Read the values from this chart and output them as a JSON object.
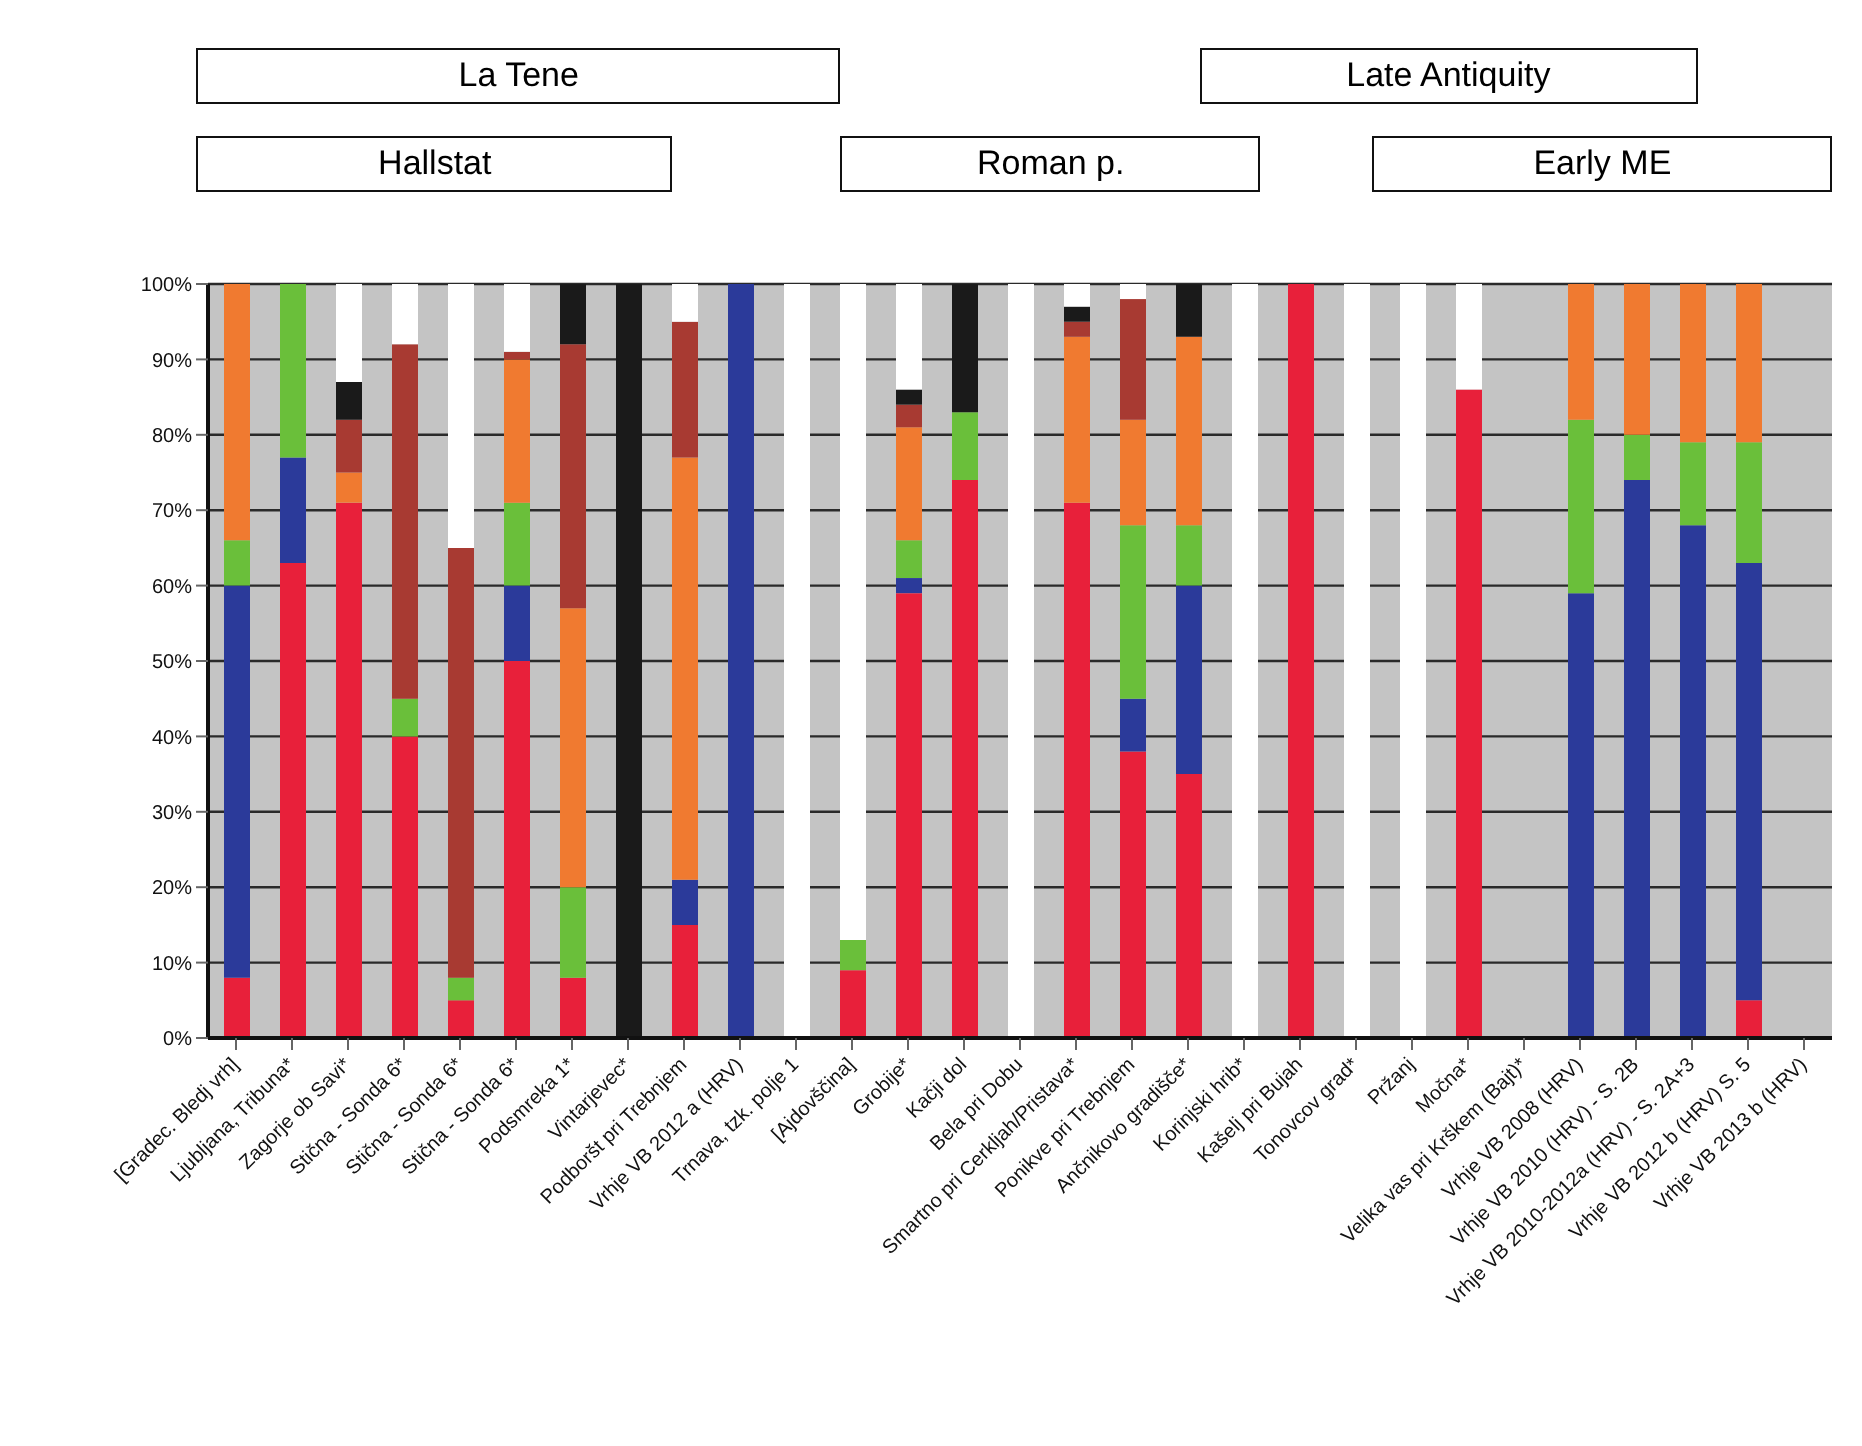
{
  "chart_data": {
    "type": "bar",
    "stacked": true,
    "annotations": [
      "La Tene",
      "Hallstat",
      "Roman p.",
      "Late Antiquity",
      "Early ME"
    ],
    "categories": [
      "[Gradec. Bledj vrh]",
      "Ljubljana, Tribuna*",
      "Zagorje ob Savi*",
      "Stična - Sonda 6*",
      "Stična - Sonda 6*",
      "Stična - Sonda 6*",
      "Podsmreka 1*",
      "Vintarjevec*",
      "Podboršt pri Trebnjem",
      "Vrhje VB 2012 a (HRV)",
      "Trnava, tzk. polje 1",
      "[Ajdovščina]",
      "Grobije*",
      "Kačji dol",
      "Bela pri Dobu",
      "Smartno pri Cerkljah/Pristava*",
      "Ponikve pri Trebnjem",
      "Ančnikovo gradišče*",
      "Korinjski hrib*",
      "Kašelj pri Bujah",
      "Tonovcov grad*",
      "Pržanj",
      "Močna*",
      "Velika vas pri Krškem (Bajt)*",
      "Vrhje VB 2008 (HRV)",
      "Vrhje VB 2010 (HRV) - S. 2B",
      "Vrhje VB 2010-2012a (HRV) - S. 2A+3",
      "Vrhje VB 2012 b (HRV) S. 5",
      "Vrhje VB 2013 b (HRV)"
    ],
    "series": [
      {
        "color": "#e8203a",
        "values": [
          8,
          63,
          71,
          40,
          5,
          50,
          8,
          0,
          15,
          0,
          0,
          9,
          59,
          74,
          0,
          71,
          38,
          35,
          0,
          100,
          0,
          0,
          86,
          null,
          0,
          0,
          0,
          5,
          null
        ]
      },
      {
        "color": "#2b3a9a",
        "values": [
          52,
          14,
          0,
          0,
          0,
          10,
          0,
          0,
          6,
          100,
          0,
          0,
          2,
          0,
          0,
          0,
          7,
          25,
          0,
          0,
          0,
          0,
          0,
          null,
          59,
          74,
          68,
          58,
          null
        ]
      },
      {
        "color": "#6abf3a",
        "values": [
          6,
          23,
          0,
          5,
          3,
          11,
          12,
          0,
          0,
          0,
          0,
          4,
          5,
          9,
          0,
          0,
          23,
          8,
          0,
          0,
          0,
          0,
          0,
          null,
          23,
          6,
          11,
          16,
          null
        ]
      },
      {
        "color": "#f07a30",
        "values": [
          34,
          0,
          4,
          0,
          0,
          19,
          37,
          0,
          56,
          0,
          0,
          0,
          15,
          0,
          0,
          22,
          14,
          25,
          0,
          0,
          0,
          0,
          0,
          null,
          18,
          20,
          21,
          21,
          null
        ]
      },
      {
        "color": "#a83a32",
        "values": [
          0,
          0,
          7,
          47,
          57,
          1,
          35,
          0,
          18,
          0,
          0,
          0,
          3,
          0,
          0,
          2,
          16,
          0,
          0,
          0,
          0,
          0,
          0,
          null,
          0,
          0,
          0,
          0,
          null
        ]
      },
      {
        "color": "#1a1a1a",
        "values": [
          0,
          0,
          5,
          0,
          0,
          0,
          8,
          100,
          0,
          0,
          0,
          0,
          2,
          17,
          0,
          2,
          0,
          7,
          0,
          0,
          0,
          0,
          0,
          null,
          0,
          0,
          0,
          0,
          null
        ]
      },
      {
        "color": "#ffffff",
        "values": [
          0,
          0,
          13,
          8,
          35,
          9,
          0,
          0,
          5,
          0,
          100,
          87,
          14,
          0,
          100,
          3,
          2,
          0,
          100,
          0,
          100,
          100,
          14,
          null,
          0,
          0,
          0,
          0,
          null
        ]
      }
    ],
    "ylim": [
      0,
      100
    ],
    "yticks": [
      {
        "value": 0,
        "label": "0%"
      },
      {
        "value": 10,
        "label": "10%"
      },
      {
        "value": 20,
        "label": "20%"
      },
      {
        "value": 30,
        "label": "30%"
      },
      {
        "value": 40,
        "label": "40%"
      },
      {
        "value": 50,
        "label": "50%"
      },
      {
        "value": 60,
        "label": "60%"
      },
      {
        "value": 70,
        "label": "70%"
      },
      {
        "value": 80,
        "label": "80%"
      },
      {
        "value": 90,
        "label": "90%"
      },
      {
        "value": 100,
        "label": "100%"
      }
    ],
    "grid": "y",
    "legend": false
  }
}
